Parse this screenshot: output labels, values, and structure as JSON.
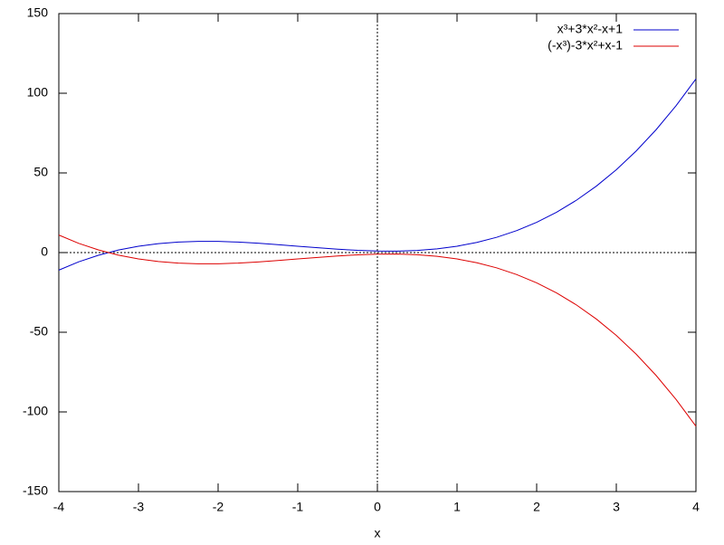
{
  "chart_data": {
    "type": "line",
    "xlabel": "x",
    "x": [
      -4,
      -3.75,
      -3.5,
      -3.25,
      -3,
      -2.75,
      -2.5,
      -2.25,
      -2,
      -1.75,
      -1.5,
      -1.25,
      -1,
      -0.75,
      -0.5,
      -0.25,
      0,
      0.25,
      0.5,
      0.75,
      1,
      1.25,
      1.5,
      1.75,
      2,
      2.25,
      2.5,
      2.75,
      3,
      3.25,
      3.5,
      3.75,
      4
    ],
    "series": [
      {
        "name": "x³+3*x²-x+1",
        "color": "#0000cc",
        "values": [
          -11,
          -5.8,
          -1.63,
          1.61,
          4,
          5.64,
          6.63,
          7.05,
          7,
          6.58,
          5.88,
          4.98,
          4,
          3.02,
          2.13,
          1.42,
          1,
          0.95,
          1.38,
          2.36,
          4,
          6.39,
          9.63,
          13.8,
          19,
          25.33,
          32.88,
          41.73,
          52,
          63.77,
          77.13,
          92.17,
          109
        ]
      },
      {
        "name": "(-x³)-3*x²+x-1",
        "color": "#dd0000",
        "values": [
          11,
          5.8,
          1.63,
          -1.61,
          -4,
          -5.64,
          -6.63,
          -7.05,
          -7,
          -6.58,
          -5.88,
          -4.98,
          -4,
          -3.02,
          -2.13,
          -1.42,
          -1,
          -0.95,
          -1.38,
          -2.36,
          -4,
          -6.39,
          -9.63,
          -13.8,
          -19,
          -25.33,
          -32.88,
          -41.73,
          -52,
          -63.77,
          -77.13,
          -92.17,
          -109
        ]
      }
    ],
    "xlim": [
      -4,
      4
    ],
    "xticks": [
      -4,
      -3,
      -2,
      -1,
      0,
      1,
      2,
      3,
      4
    ],
    "ylim": [
      -150,
      150
    ],
    "yticks": [
      -150,
      -100,
      -50,
      0,
      50,
      100,
      150
    ],
    "zeroaxis": true,
    "legend": "top-right"
  }
}
